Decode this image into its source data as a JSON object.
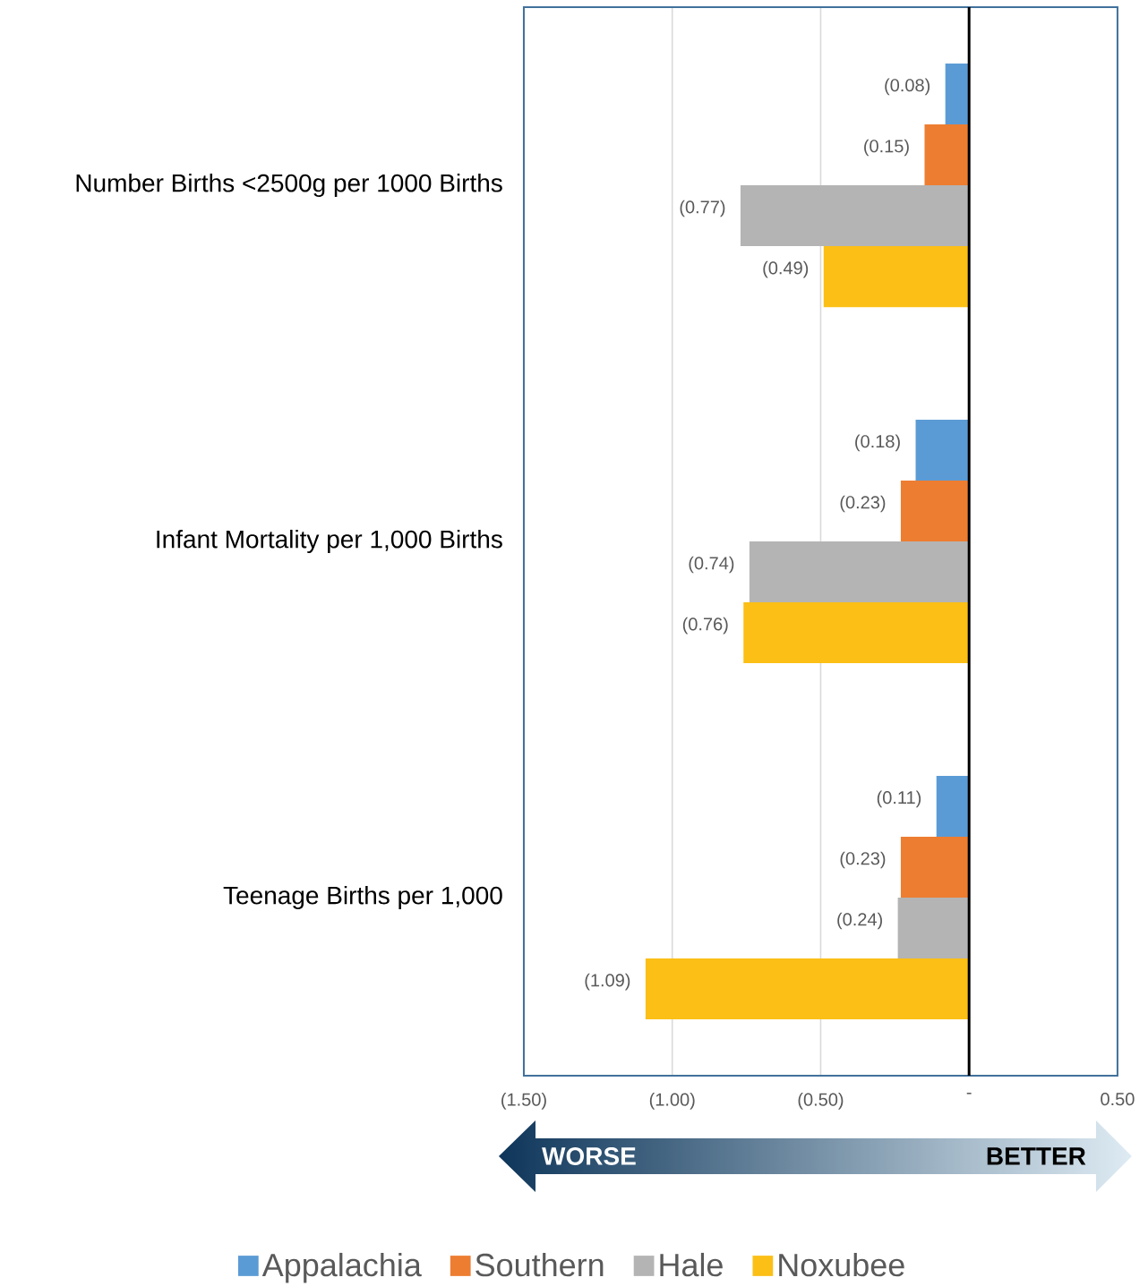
{
  "chart_data": {
    "type": "bar",
    "orientation": "horizontal",
    "categories": [
      "Number Births <2500g per 1000 Births",
      "Infant Mortality per 1,000 Births",
      "Teenage Births per 1,000"
    ],
    "series": [
      {
        "name": "Appalachia",
        "color": "#5b9bd5",
        "values": [
          -0.08,
          -0.18,
          -0.11
        ],
        "value_labels": [
          "(0.08)",
          "(0.18)",
          "(0.11)"
        ]
      },
      {
        "name": "Southern",
        "color": "#ed7d31",
        "values": [
          -0.15,
          -0.23,
          -0.23
        ],
        "value_labels": [
          "(0.15)",
          "(0.23)",
          "(0.23)"
        ]
      },
      {
        "name": "Hale",
        "color": "#b4b4b4",
        "values": [
          -0.77,
          -0.74,
          -0.24
        ],
        "value_labels": [
          "(0.77)",
          "(0.74)",
          "(0.24)"
        ]
      },
      {
        "name": "Noxubee",
        "color": "#fbbf16",
        "values": [
          -0.49,
          -0.76,
          -1.09
        ],
        "value_labels": [
          "(0.49)",
          "(0.76)",
          "(1.09)"
        ]
      }
    ],
    "xlim": [
      -1.5,
      0.5
    ],
    "xticks": [
      {
        "value": -1.5,
        "label": "(1.50)"
      },
      {
        "value": -1.0,
        "label": "(1.00)"
      },
      {
        "value": -0.5,
        "label": "(0.50)"
      },
      {
        "value": 0,
        "label": "-"
      },
      {
        "value": 0.5,
        "label": "0.50"
      }
    ],
    "grid": "x",
    "legend": "bottom",
    "ref_lines": [
      {
        "axis": "x",
        "value": 0,
        "color": "#000000"
      }
    ],
    "annotations": [
      "WORSE",
      "BETTER"
    ]
  }
}
